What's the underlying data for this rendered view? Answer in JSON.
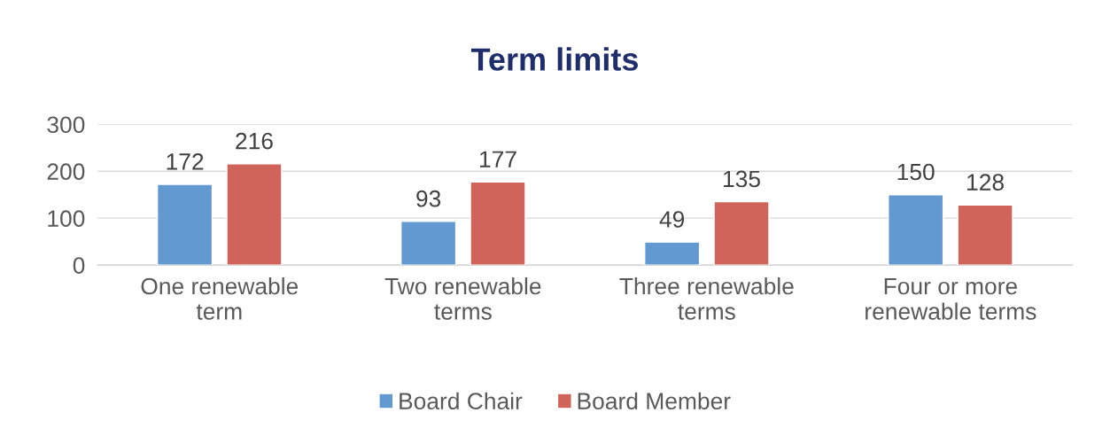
{
  "chart_data": {
    "type": "bar",
    "title": "Term limits",
    "categories": [
      "One renewable\nterm",
      "Two renewable\nterms",
      "Three renewable\nterms",
      "Four or more\nrenewable terms"
    ],
    "series": [
      {
        "name": "Board Chair",
        "color": "#6199d0",
        "values": [
          172,
          93,
          49,
          150
        ]
      },
      {
        "name": "Board Member",
        "color": "#d1645a",
        "values": [
          216,
          177,
          135,
          128
        ]
      }
    ],
    "ylim": [
      0,
      300
    ],
    "yticks": [
      0,
      100,
      200,
      300
    ],
    "grid": "y",
    "legend": "bottom",
    "data_labels": true
  }
}
